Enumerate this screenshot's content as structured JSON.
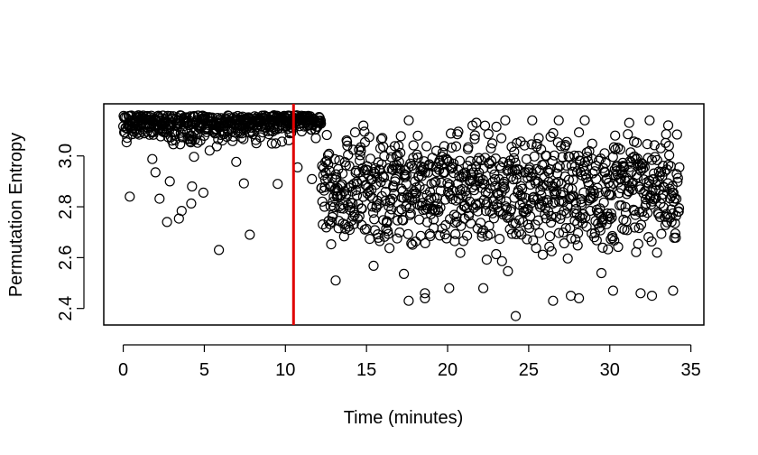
{
  "chart_data": {
    "type": "scatter",
    "title": "",
    "xlabel": "Time (minutes)",
    "ylabel": "Permutation Entropy",
    "xlim": [
      -1.2,
      35.8
    ],
    "ylim": [
      2.335,
      3.205
    ],
    "xticks": [
      0,
      5,
      10,
      15,
      20,
      25,
      30,
      35
    ],
    "yticks": [
      2.4,
      2.6,
      2.8,
      3.0
    ],
    "xtick_labels": [
      "0",
      "5",
      "10",
      "15",
      "20",
      "25",
      "30",
      "35"
    ],
    "ytick_labels": [
      "2.4",
      "2.6",
      "2.8",
      "3.0"
    ],
    "grid": false,
    "vline": {
      "x": 10.5,
      "color": "#e00000"
    },
    "marker": "open-circle",
    "n_points_approx": 1450,
    "segments": [
      {
        "x_range": [
          0,
          10.5
        ],
        "y_mean": 3.08,
        "y_spread": 0.07,
        "y_min": 2.63,
        "y_max": 3.16
      },
      {
        "x_range": [
          10.5,
          12.2
        ],
        "y_mean": 3.11,
        "y_spread": 0.05,
        "y_min": 2.88,
        "y_max": 3.16
      },
      {
        "x_range": [
          12.2,
          34.3
        ],
        "y_mean": 2.86,
        "y_spread": 0.15,
        "y_min": 2.37,
        "y_max": 3.14
      }
    ],
    "notable_points": [
      {
        "x": 13.1,
        "y": 2.51
      },
      {
        "x": 17.6,
        "y": 2.43
      },
      {
        "x": 18.6,
        "y": 2.44
      },
      {
        "x": 18.6,
        "y": 2.46
      },
      {
        "x": 20.1,
        "y": 2.48
      },
      {
        "x": 22.2,
        "y": 2.48
      },
      {
        "x": 24.2,
        "y": 2.37
      },
      {
        "x": 26.5,
        "y": 2.43
      },
      {
        "x": 27.6,
        "y": 2.45
      },
      {
        "x": 28.1,
        "y": 2.44
      },
      {
        "x": 30.2,
        "y": 2.47
      },
      {
        "x": 31.9,
        "y": 2.46
      },
      {
        "x": 32.6,
        "y": 2.45
      },
      {
        "x": 33.9,
        "y": 2.47
      },
      {
        "x": 5.9,
        "y": 2.63
      },
      {
        "x": 2.7,
        "y": 2.74
      },
      {
        "x": 7.8,
        "y": 2.69
      },
      {
        "x": 0.4,
        "y": 2.84
      },
      {
        "x": 31.2,
        "y": 3.13
      },
      {
        "x": 33.6,
        "y": 3.12
      }
    ]
  }
}
